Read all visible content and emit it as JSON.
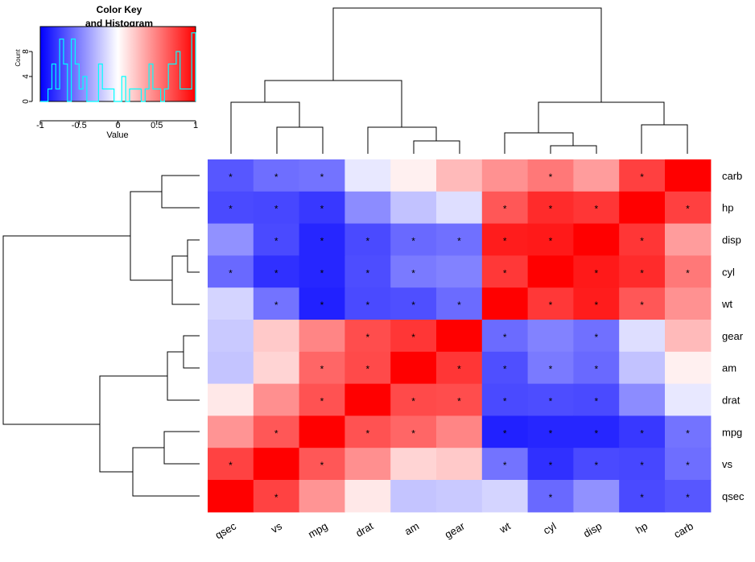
{
  "chart_data": {
    "type": "heatmap",
    "colormap": {
      "low": "#0000FF",
      "mid": "#FFFFFF",
      "high": "#FF0000",
      "range": [
        -1,
        1
      ]
    },
    "columns": [
      "qsec",
      "vs",
      "mpg",
      "drat",
      "am",
      "gear",
      "wt",
      "cyl",
      "disp",
      "hp",
      "carb"
    ],
    "rows": [
      "carb",
      "hp",
      "disp",
      "cyl",
      "wt",
      "gear",
      "am",
      "drat",
      "mpg",
      "vs",
      "qsec"
    ],
    "values": [
      [
        -0.66,
        -0.57,
        -0.55,
        -0.09,
        0.06,
        0.27,
        0.43,
        0.53,
        0.39,
        0.75,
        1.0
      ],
      [
        -0.71,
        -0.72,
        -0.78,
        -0.45,
        -0.24,
        -0.13,
        0.66,
        0.83,
        0.79,
        1.0,
        0.75
      ],
      [
        -0.43,
        -0.71,
        -0.85,
        -0.71,
        -0.59,
        -0.56,
        0.89,
        0.9,
        1.0,
        0.79,
        0.39
      ],
      [
        -0.59,
        -0.81,
        -0.85,
        -0.7,
        -0.52,
        -0.49,
        0.78,
        1.0,
        0.9,
        0.83,
        0.53
      ],
      [
        -0.17,
        -0.55,
        -0.87,
        -0.71,
        -0.69,
        -0.58,
        1.0,
        0.78,
        0.89,
        0.66,
        0.43
      ],
      [
        -0.21,
        0.21,
        0.48,
        0.7,
        0.79,
        1.0,
        -0.58,
        -0.49,
        -0.56,
        -0.13,
        0.27
      ],
      [
        -0.23,
        0.17,
        0.6,
        0.71,
        1.0,
        0.79,
        -0.69,
        -0.52,
        -0.59,
        -0.24,
        0.06
      ],
      [
        0.09,
        0.44,
        0.68,
        1.0,
        0.71,
        0.7,
        -0.71,
        -0.7,
        -0.71,
        -0.45,
        -0.09
      ],
      [
        0.42,
        0.66,
        1.0,
        0.68,
        0.6,
        0.48,
        -0.87,
        -0.85,
        -0.85,
        -0.78,
        -0.55
      ],
      [
        0.74,
        1.0,
        0.66,
        0.44,
        0.17,
        0.21,
        -0.55,
        -0.81,
        -0.71,
        -0.72,
        -0.57
      ],
      [
        1.0,
        0.74,
        0.42,
        0.09,
        -0.23,
        -0.21,
        -0.17,
        -0.59,
        -0.43,
        -0.71,
        -0.66
      ]
    ],
    "significant": [
      [
        1,
        1,
        1,
        0,
        0,
        0,
        0,
        1,
        0,
        1,
        0
      ],
      [
        1,
        1,
        1,
        0,
        0,
        0,
        1,
        1,
        1,
        0,
        1
      ],
      [
        0,
        1,
        1,
        1,
        1,
        1,
        1,
        1,
        0,
        1,
        0
      ],
      [
        1,
        1,
        1,
        1,
        1,
        0,
        1,
        0,
        1,
        1,
        1
      ],
      [
        0,
        1,
        1,
        1,
        1,
        1,
        0,
        1,
        1,
        1,
        0
      ],
      [
        0,
        0,
        0,
        1,
        1,
        0,
        1,
        0,
        1,
        0,
        0
      ],
      [
        0,
        0,
        1,
        1,
        0,
        1,
        1,
        1,
        1,
        0,
        0
      ],
      [
        0,
        0,
        1,
        0,
        1,
        1,
        1,
        1,
        1,
        0,
        0
      ],
      [
        0,
        1,
        0,
        1,
        1,
        0,
        1,
        1,
        1,
        1,
        1
      ],
      [
        1,
        0,
        1,
        0,
        0,
        0,
        1,
        1,
        1,
        1,
        1
      ],
      [
        0,
        1,
        0,
        0,
        0,
        0,
        0,
        1,
        0,
        1,
        1
      ]
    ],
    "significance_marker": "*",
    "color_key": {
      "title": "Color Key\nand Histogram",
      "xlabel": "Value",
      "ylabel": "Count",
      "xticks": [
        "-1",
        "-0.5",
        "0",
        "0.5",
        "1"
      ],
      "yticks": [
        "0",
        "4",
        "8"
      ],
      "histogram_color": "#00FFFF",
      "xlim": [
        -1,
        1
      ],
      "ylim": [
        0,
        12
      ]
    }
  }
}
